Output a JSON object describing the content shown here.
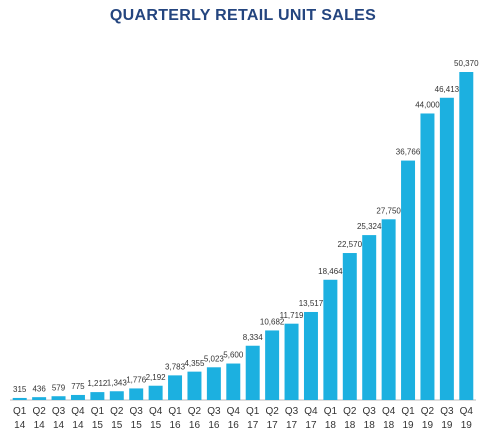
{
  "chart_data": {
    "type": "bar",
    "title": "QUARTERLY RETAIL UNIT SALES",
    "categories": [
      "Q1 14",
      "Q2 14",
      "Q3 14",
      "Q4 14",
      "Q1 15",
      "Q2 15",
      "Q3 15",
      "Q4 15",
      "Q1 16",
      "Q2 16",
      "Q3 16",
      "Q4 16",
      "Q1 17",
      "Q2 17",
      "Q3 17",
      "Q4 17",
      "Q1 18",
      "Q2 18",
      "Q3 18",
      "Q4 18",
      "Q1 19",
      "Q2 19",
      "Q3 19",
      "Q4 19"
    ],
    "values": [
      315,
      436,
      579,
      775,
      1212,
      1343,
      1776,
      2192,
      3783,
      4355,
      5023,
      5600,
      8334,
      10682,
      11719,
      13517,
      18464,
      22570,
      25324,
      27750,
      36766,
      44000,
      46413,
      50370
    ],
    "value_labels": [
      "315",
      "436",
      "579",
      "775",
      "1,212",
      "1,343",
      "1,776",
      "2,192",
      "3,783",
      "4,355",
      "5,023",
      "5,600",
      "8,334",
      "10,682",
      "11,719",
      "13,517",
      "18,464",
      "22,570",
      "25,324",
      "27,750",
      "36,766",
      "44,000",
      "46,413",
      "50,370"
    ],
    "color": "#1cb0e0"
  }
}
